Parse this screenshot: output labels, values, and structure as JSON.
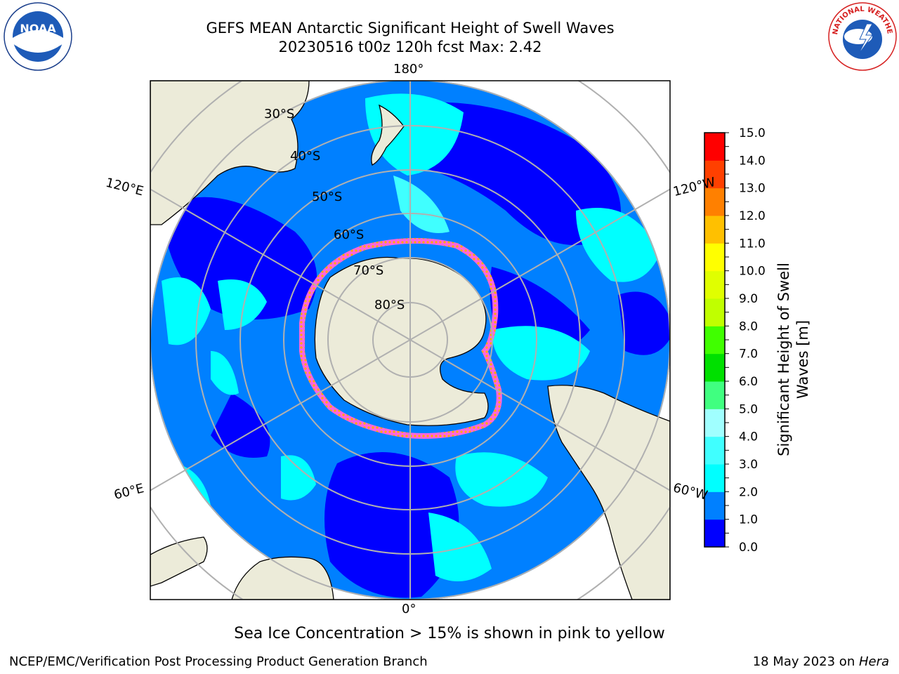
{
  "header": {
    "title_line1": "GEFS MEAN Antarctic Significant Height of Swell Waves",
    "title_line2": "20230516 t00z 120h fcst   Max: 2.42"
  },
  "map": {
    "projection": "south-polar-stereographic",
    "longitude_labels": {
      "top": "180°",
      "bottom": "0°",
      "upper_left": "120°E",
      "upper_right": "120°W",
      "lower_left": "60°E",
      "lower_right": "60°W"
    },
    "latitude_labels": [
      "30°S",
      "40°S",
      "50°S",
      "60°S",
      "70°S",
      "80°S"
    ],
    "colors": {
      "land": "#ecebd9",
      "sea_ice_shelf": "#ffffff",
      "grid": "#b0b0b0",
      "ice_edge": [
        "#ff44cc",
        "#ffaa00"
      ]
    }
  },
  "colorbar": {
    "label": "Significant Height of Swell Waves [m]",
    "ticks": [
      "0.0",
      "0.5",
      "1.0",
      "1.5",
      "2.0",
      "2.5",
      "3.0",
      "3.5",
      "4.0",
      "4.5",
      "5.0",
      "5.5",
      "6.0",
      "6.5",
      "7.0",
      "7.5",
      "8.0",
      "8.5",
      "9.0",
      "9.5",
      "10.0",
      "10.5",
      "11.0",
      "11.5",
      "12.0",
      "12.5",
      "13.0",
      "13.5",
      "14.0",
      "14.5",
      "15.0"
    ],
    "colors": [
      "#0000ff",
      "#0000ff",
      "#0080ff",
      "#0080ff",
      "#00ffff",
      "#00ffff",
      "#40ffff",
      "#40ffff",
      "#a0ffff",
      "#a0ffff",
      "#40ff80",
      "#40ff80",
      "#00e000",
      "#00e000",
      "#40ff00",
      "#40ff00",
      "#c0ff00",
      "#c0ff00",
      "#e0ff00",
      "#e0ff00",
      "#ffff00",
      "#ffff00",
      "#ffc000",
      "#ffc000",
      "#ff8000",
      "#ff8000",
      "#ff4000",
      "#ff4000",
      "#ff0000",
      "#ff0000"
    ]
  },
  "footer": {
    "note": "Sea Ice Concentration > 15% is shown in pink to yellow",
    "credit": "NCEP/EMC/Verification Post Processing Product Generation Branch",
    "date": "18 May 2023 on ",
    "host": "Hera"
  },
  "logos": {
    "left": "NOAA",
    "right": "NATIONAL WEATHER SERVICE"
  }
}
